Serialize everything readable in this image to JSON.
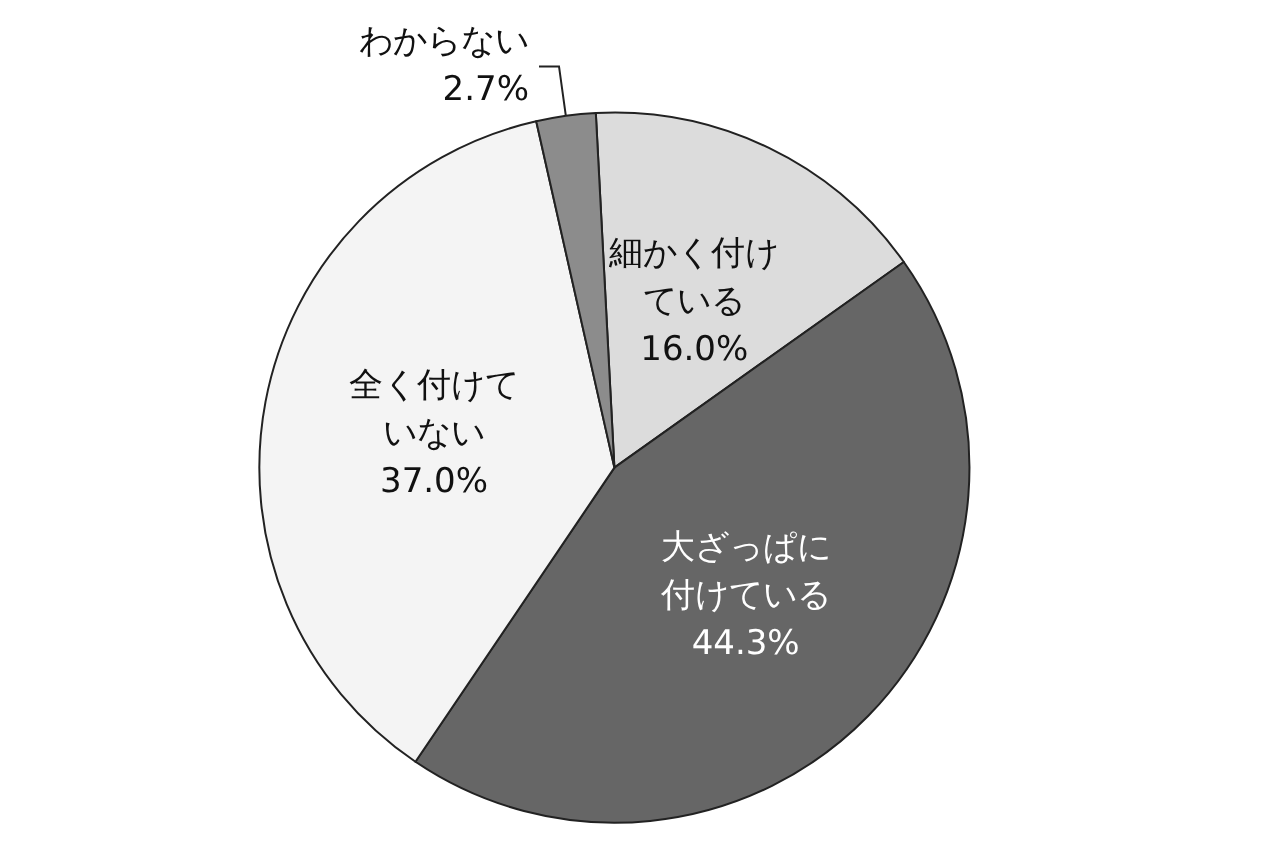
{
  "chart_data": {
    "type": "pie",
    "categories": [
      "細かく付けている",
      "大ざっぱに付けている",
      "全く付けていない",
      "わからない"
    ],
    "values": [
      16.0,
      44.3,
      37.0,
      2.7
    ],
    "value_labels": [
      "16.0%",
      "44.3%",
      "37.0%",
      "2.7%"
    ],
    "colors": [
      "#dcdcdc",
      "#666666",
      "#f4f4f4",
      "#8c8c8c"
    ],
    "legend": false
  }
}
